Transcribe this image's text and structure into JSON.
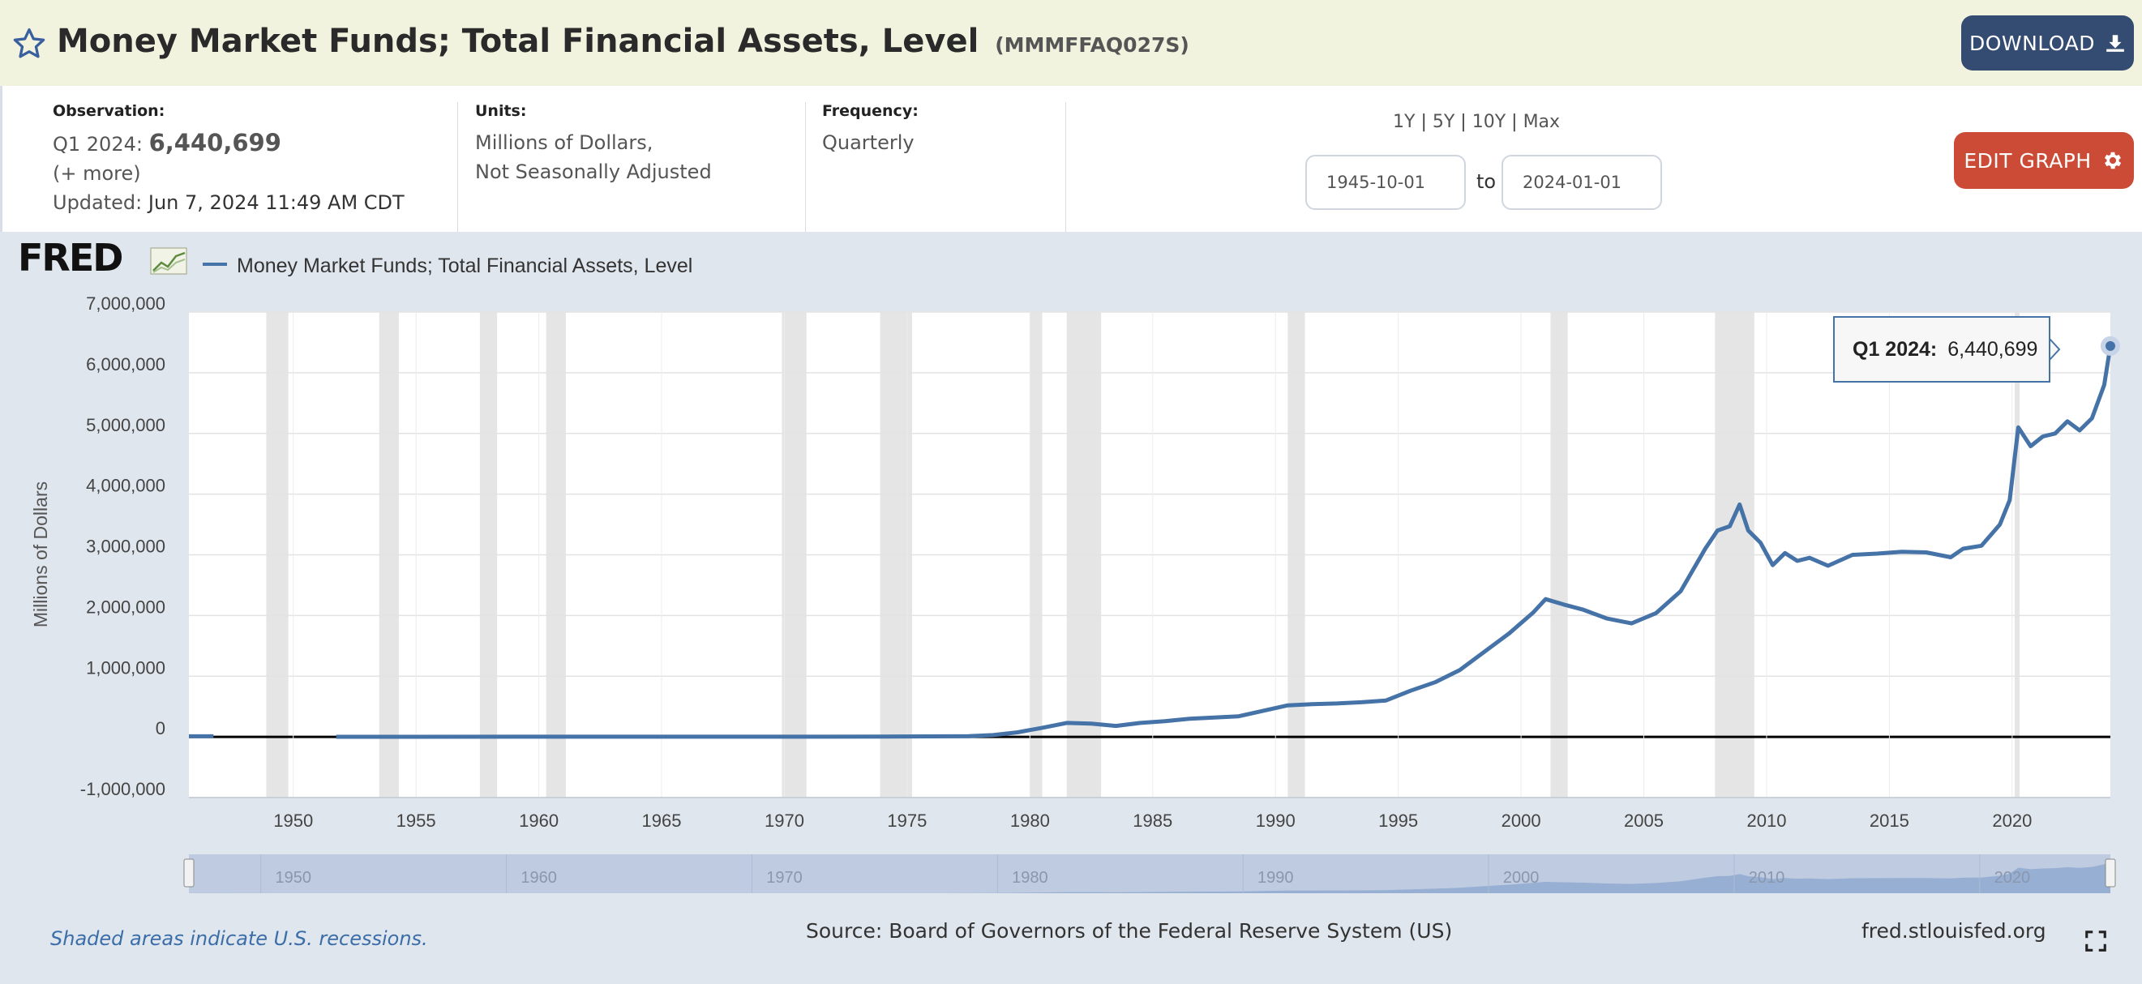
{
  "header": {
    "title": "Money Market Funds; Total Financial Assets, Level",
    "series_id": "(MMMFFAQ027S)",
    "download_label": "DOWNLOAD"
  },
  "meta": {
    "observation_label": "Observation:",
    "observation_period": "Q1 2024:",
    "observation_value": "6,440,699",
    "more_link": "(+ more)",
    "updated_label": "Updated:",
    "updated_value": "Jun 7, 2024 11:49 AM CDT",
    "units_label": "Units:",
    "units_line1": "Millions of Dollars,",
    "units_line2": "Not Seasonally Adjusted",
    "frequency_label": "Frequency:",
    "frequency_value": "Quarterly",
    "range_1y": "1Y",
    "range_5y": "5Y",
    "range_10y": "10Y",
    "range_max": "Max",
    "range_sep": "|",
    "start_date": "1945-10-01",
    "to_label": "to",
    "end_date": "2024-01-01",
    "edit_label": "EDIT GRAPH"
  },
  "chart": {
    "logo_text": "FRED",
    "legend_label": "Money Market Funds; Total Financial Assets, Level",
    "tooltip_period": "Q1 2024:",
    "tooltip_value": "6,440,699",
    "ytick_labels": [
      "7,000,000",
      "6,000,000",
      "5,000,000",
      "4,000,000",
      "3,000,000",
      "2,000,000",
      "1,000,000",
      "0",
      "-1,000,000"
    ],
    "xtick_labels": [
      "1950",
      "1955",
      "1960",
      "1965",
      "1970",
      "1975",
      "1980",
      "1985",
      "1990",
      "1995",
      "2000",
      "2005",
      "2010",
      "2015",
      "2020"
    ],
    "navigator_labels": [
      "1950",
      "1960",
      "1970",
      "1980",
      "1990",
      "2000",
      "2010",
      "2020"
    ],
    "series_color": "#4572a7",
    "recession_color": "#e5e5e5"
  },
  "footer": {
    "note": "Shaded areas indicate U.S. recessions.",
    "source": "Source: Board of Governors of the Federal Reserve System (US)",
    "site": "fred.stlouisfed.org"
  },
  "chart_data": {
    "type": "line",
    "ylabel": "Millions of Dollars",
    "ylim": [
      -1000000,
      7000000
    ],
    "xlim": [
      1945.75,
      2024.0
    ],
    "grid": true,
    "legend_placement": "top-left",
    "recessions": [
      [
        1948.9,
        1949.8
      ],
      [
        1953.5,
        1954.3
      ],
      [
        1957.6,
        1958.3
      ],
      [
        1960.3,
        1961.1
      ],
      [
        1969.9,
        1970.9
      ],
      [
        1973.9,
        1975.2
      ],
      [
        1980.0,
        1980.5
      ],
      [
        1981.5,
        1982.9
      ],
      [
        1990.5,
        1991.2
      ],
      [
        2001.2,
        2001.9
      ],
      [
        2007.9,
        2009.5
      ],
      [
        2020.1,
        2020.3
      ]
    ],
    "series": [
      {
        "name": "Money Market Funds; Total Financial Assets, Level",
        "x": [
          1945.75,
          1946.75,
          1951.75,
          1960,
          1970,
          1974,
          1976,
          1977.5,
          1978.5,
          1979.5,
          1980.5,
          1981.5,
          1982.5,
          1983.5,
          1984.5,
          1985.5,
          1986.5,
          1987.5,
          1988.5,
          1989.5,
          1990.5,
          1991.5,
          1992.5,
          1993.5,
          1994.5,
          1995.5,
          1996.5,
          1997.5,
          1998.5,
          1999.5,
          2000.5,
          2001.0,
          2001.75,
          2002.5,
          2003.5,
          2004.5,
          2005.5,
          2006.5,
          2007.5,
          2008.0,
          2008.5,
          2008.9,
          2009.25,
          2009.75,
          2010.25,
          2010.75,
          2011.25,
          2011.75,
          2012.5,
          2013.5,
          2014.5,
          2015.5,
          2016.5,
          2017.5,
          2018.0,
          2018.75,
          2019.5,
          2019.9,
          2020.25,
          2020.75,
          2021.25,
          2021.75,
          2022.25,
          2022.75,
          2023.25,
          2023.75,
          2024.0
        ],
        "values": [
          10000,
          10000,
          2000,
          2500,
          3000,
          5000,
          8000,
          12000,
          30000,
          75000,
          150000,
          230000,
          220000,
          180000,
          230000,
          260000,
          300000,
          320000,
          340000,
          430000,
          520000,
          540000,
          550000,
          570000,
          600000,
          760000,
          900000,
          1100000,
          1400000,
          1700000,
          2050000,
          2270000,
          2180000,
          2100000,
          1950000,
          1870000,
          2040000,
          2400000,
          3100000,
          3400000,
          3470000,
          3830000,
          3400000,
          3200000,
          2830000,
          3030000,
          2900000,
          2950000,
          2820000,
          3000000,
          3020000,
          3050000,
          3040000,
          2960000,
          3100000,
          3150000,
          3500000,
          3900000,
          5100000,
          4790000,
          4950000,
          5000000,
          5200000,
          5050000,
          5250000,
          5800000,
          6440699
        ]
      }
    ]
  }
}
